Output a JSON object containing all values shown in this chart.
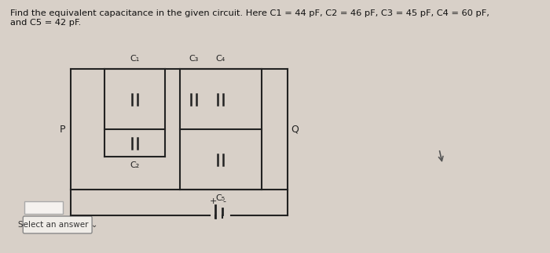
{
  "title_line1": "Find the equivalent capacitance in the given circuit. Here C1 = 44 pF, C2 = 46 pF, C3 = 45 pF, C4 = 60 pF,",
  "title_line2": "and C5 = 42 pF.",
  "bg_color": "#d8d0c8",
  "circuit_color": "#222222",
  "text_color": "#111111",
  "label_P": "P",
  "label_Q": "Q",
  "label_C1": "C₁",
  "label_C2": "C₂",
  "label_C3": "C₃",
  "label_C4": "C₄",
  "label_C5": "C₅",
  "select_label": "Select an answer",
  "arrow_color": "#333333"
}
